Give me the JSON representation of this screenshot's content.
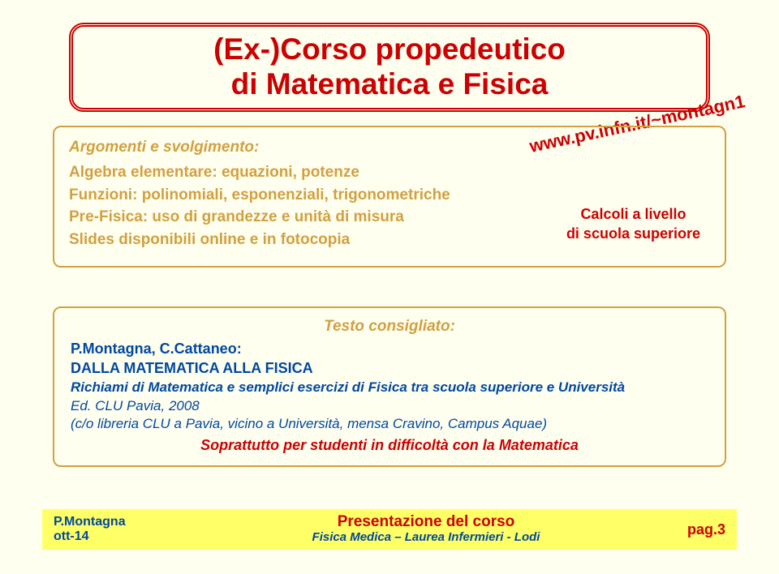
{
  "title": "(Ex-)Corso propedeutico\ndi Matematica e Fisica",
  "link_diag": "www.pv.infn.it/~montagn1",
  "box1": {
    "heading": "Argomenti e svolgimento:",
    "lines": [
      "Algebra elementare: equazioni, potenze",
      "Funzioni: polinomiali, esponenziali, trigonometriche",
      "Pre-Fisica: uso di grandezze e unità di misura",
      "Slides disponibili online e in fotocopia"
    ],
    "calcoli": "Calcoli a livello\ndi scuola superiore"
  },
  "box2": {
    "heading": "Testo consigliato:",
    "authors": "P.Montagna, C.Cattaneo:",
    "booktitle": "DALLA MATEMATICA ALLA FISICA",
    "booksub": "Richiami di Matematica e semplici esercizi di Fisica tra scuola superiore e Università",
    "info1": "Ed. CLU Pavia, 2008",
    "info2": "(c/o libreria CLU a Pavia, vicino a Università, mensa Cravino, Campus Aquae)",
    "soprattutto": "Soprattutto per studenti in difficoltà con la Matematica"
  },
  "footer": {
    "author": "P.Montagna",
    "date": "ott-14",
    "center_top": "Presentazione del corso",
    "center_bot": "Fisica Medica – Laurea Infermieri - Lodi",
    "page": "pag.3"
  },
  "colors": {
    "bg": "#fffff0",
    "red": "#cc0000",
    "ochre": "#d2a040",
    "blue": "#0048a0",
    "yellow": "#ffff66"
  }
}
